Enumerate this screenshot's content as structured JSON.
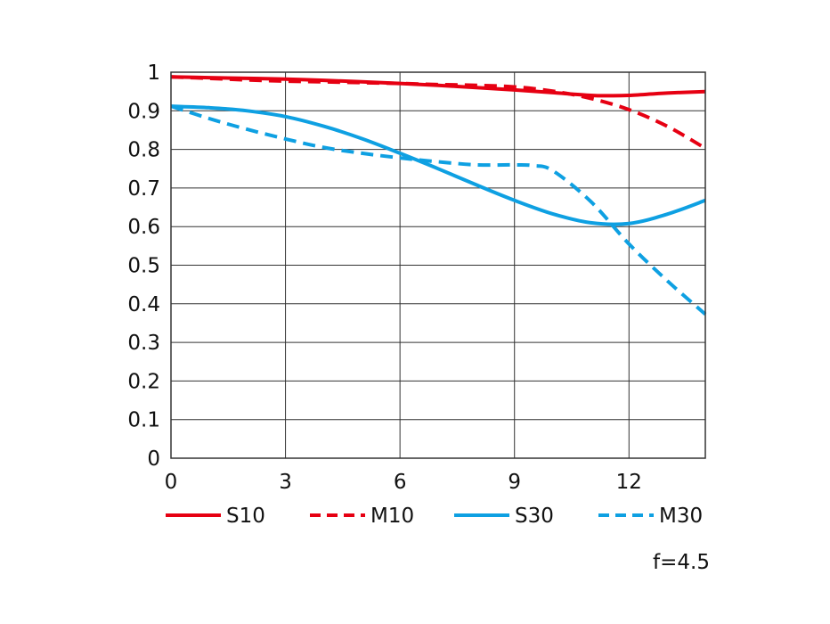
{
  "chart_data": {
    "type": "line",
    "title": "",
    "xlabel": "",
    "ylabel": "",
    "xlim": [
      0,
      14
    ],
    "ylim": [
      0,
      1
    ],
    "x_ticks": [
      0,
      3,
      6,
      9,
      12
    ],
    "y_ticks": [
      0,
      0.1,
      0.2,
      0.3,
      0.4,
      0.5,
      0.6,
      0.7,
      0.8,
      0.9,
      1
    ],
    "y_tick_labels": [
      "0",
      "0.1",
      "0.2",
      "0.3",
      "0.4",
      "0.5",
      "0.6",
      "0.7",
      "0.8",
      "0.9",
      "1"
    ],
    "x_tick_labels": [
      "0",
      "3",
      "6",
      "9",
      "12"
    ],
    "grid": true,
    "legend_position": "bottom",
    "annotation": "f=4.5",
    "series": [
      {
        "name": "S10",
        "color": "#e60012",
        "style": "solid",
        "x": [
          0,
          1,
          2,
          3,
          4,
          5,
          6,
          7,
          8,
          9,
          10,
          11,
          11.5,
          12,
          13,
          14
        ],
        "y": [
          0.988,
          0.986,
          0.984,
          0.982,
          0.979,
          0.975,
          0.971,
          0.966,
          0.96,
          0.954,
          0.947,
          0.94,
          0.939,
          0.94,
          0.946,
          0.95
        ]
      },
      {
        "name": "M10",
        "color": "#e60012",
        "style": "dashed",
        "x": [
          0,
          1,
          2,
          3,
          4,
          5,
          6,
          7,
          8,
          9,
          10,
          11,
          12,
          13,
          14
        ],
        "y": [
          0.988,
          0.984,
          0.98,
          0.977,
          0.975,
          0.973,
          0.971,
          0.968,
          0.966,
          0.962,
          0.951,
          0.932,
          0.903,
          0.86,
          0.803
        ]
      },
      {
        "name": "S30",
        "color": "#0ea0e2",
        "style": "solid",
        "x": [
          0,
          1,
          2,
          3,
          4,
          5,
          6,
          7,
          8,
          9,
          10,
          11,
          12,
          13,
          14
        ],
        "y": [
          0.912,
          0.908,
          0.9,
          0.885,
          0.86,
          0.828,
          0.79,
          0.75,
          0.708,
          0.668,
          0.633,
          0.61,
          0.608,
          0.632,
          0.668
        ]
      },
      {
        "name": "M30",
        "color": "#0ea0e2",
        "style": "dashed",
        "x": [
          0,
          1,
          2,
          3,
          4,
          5,
          6,
          7,
          8,
          9,
          9.5,
          10,
          11,
          12,
          13,
          14
        ],
        "y": [
          0.912,
          0.88,
          0.852,
          0.827,
          0.805,
          0.79,
          0.778,
          0.768,
          0.76,
          0.76,
          0.758,
          0.745,
          0.665,
          0.555,
          0.46,
          0.373
        ]
      }
    ]
  }
}
